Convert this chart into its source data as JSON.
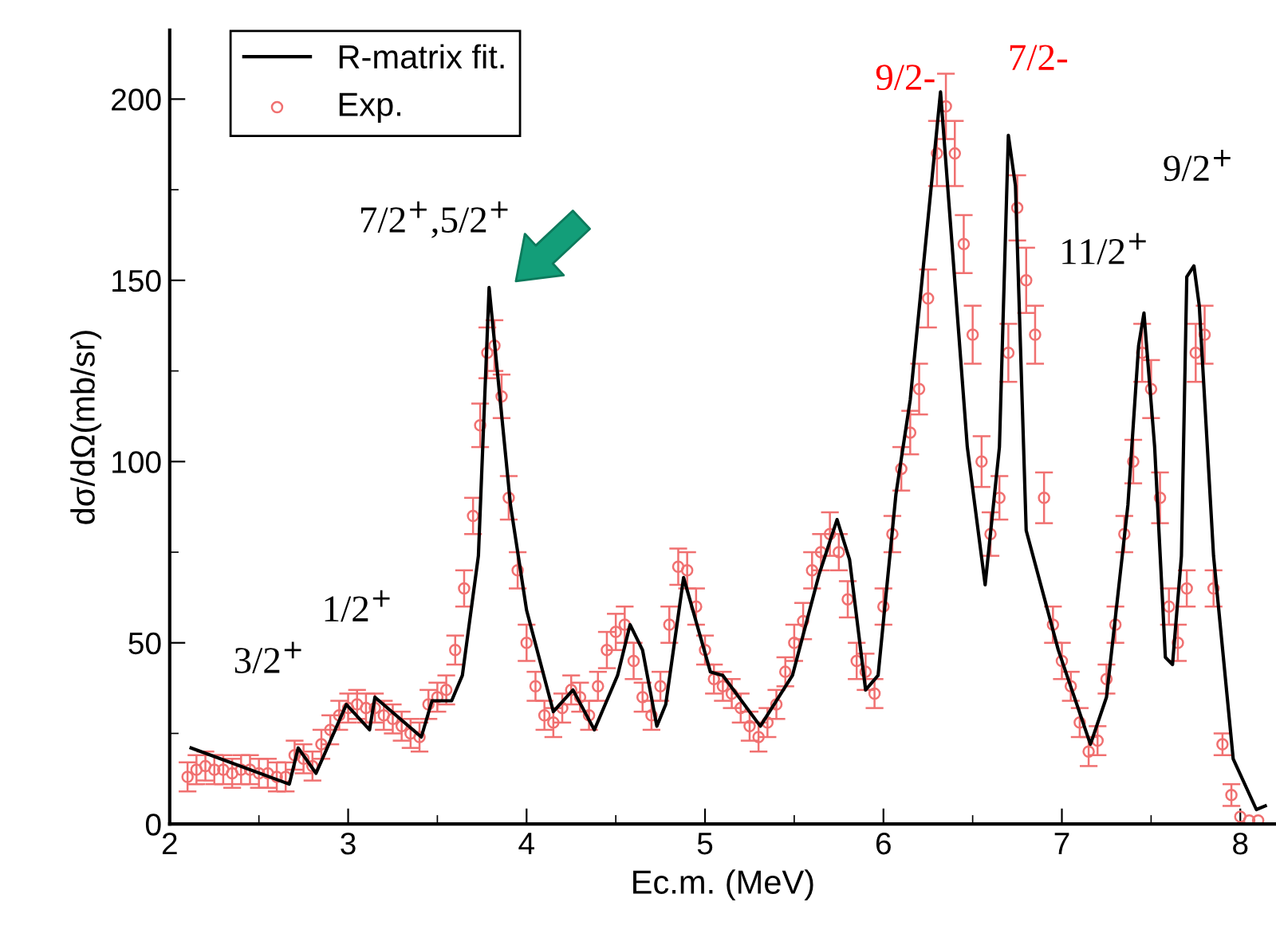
{
  "chart_data": {
    "type": "line",
    "xlabel": "Ec.m. (MeV)",
    "ylabel": "dσ/dΩ(mb/sr)",
    "xlim": [
      2,
      8.2
    ],
    "ylim": [
      0,
      219
    ],
    "xticks": [
      2,
      3,
      4,
      5,
      6,
      7,
      8
    ],
    "yticks": [
      0,
      50,
      100,
      150,
      200
    ],
    "legend": "top left",
    "grid": false,
    "series": [
      {
        "name": "R-matrix fit.",
        "color": "#000000",
        "marker": "none",
        "line_style": "solid",
        "x": [
          2.12,
          2.67,
          2.72,
          2.82,
          2.99,
          3.12,
          3.15,
          3.41,
          3.47,
          3.58,
          3.64,
          3.73,
          3.79,
          3.91,
          4.0,
          4.15,
          4.26,
          4.38,
          4.51,
          4.58,
          4.65,
          4.73,
          4.78,
          4.88,
          5.03,
          5.1,
          5.31,
          5.49,
          5.64,
          5.74,
          5.81,
          5.9,
          5.97,
          6.07,
          6.15,
          6.32,
          6.47,
          6.57,
          6.65,
          6.7,
          6.74,
          6.8,
          6.98,
          7.16,
          7.25,
          7.37,
          7.43,
          7.46,
          7.52,
          7.58,
          7.62,
          7.67,
          7.7,
          7.74,
          7.77,
          7.85,
          7.96,
          8.09,
          8.14
        ],
        "values": [
          21,
          11,
          21,
          14,
          33,
          26,
          35,
          24,
          34,
          34,
          41,
          74,
          148,
          88,
          59,
          31,
          37,
          26,
          41,
          55,
          48,
          27,
          33,
          68,
          42,
          41,
          27,
          41,
          69,
          84,
          73,
          37,
          41,
          91,
          117,
          202,
          104,
          66,
          104,
          190,
          176,
          81,
          48,
          22,
          35,
          88,
          132,
          141,
          104,
          46,
          44,
          74,
          151,
          154,
          143,
          74,
          18,
          4,
          5
        ]
      },
      {
        "name": "Exp.",
        "type": "scatter",
        "color": "#f07070",
        "marker": "circle",
        "x": [
          2.1,
          2.15,
          2.2,
          2.25,
          2.3,
          2.35,
          2.4,
          2.45,
          2.5,
          2.55,
          2.6,
          2.65,
          2.7,
          2.75,
          2.8,
          2.85,
          2.9,
          2.95,
          3.0,
          3.05,
          3.1,
          3.15,
          3.2,
          3.25,
          3.3,
          3.35,
          3.4,
          3.45,
          3.5,
          3.55,
          3.6,
          3.65,
          3.7,
          3.74,
          3.78,
          3.82,
          3.86,
          3.9,
          3.95,
          4.0,
          4.05,
          4.1,
          4.15,
          4.2,
          4.25,
          4.3,
          4.35,
          4.4,
          4.45,
          4.5,
          4.55,
          4.6,
          4.65,
          4.7,
          4.75,
          4.8,
          4.85,
          4.9,
          4.95,
          5.0,
          5.05,
          5.1,
          5.15,
          5.2,
          5.25,
          5.3,
          5.35,
          5.4,
          5.45,
          5.5,
          5.55,
          5.6,
          5.65,
          5.7,
          5.75,
          5.8,
          5.85,
          5.9,
          5.95,
          6.0,
          6.05,
          6.1,
          6.15,
          6.2,
          6.25,
          6.3,
          6.35,
          6.4,
          6.45,
          6.5,
          6.55,
          6.6,
          6.65,
          6.7,
          6.75,
          6.8,
          6.85,
          6.9,
          6.95,
          7.0,
          7.05,
          7.1,
          7.15,
          7.2,
          7.25,
          7.3,
          7.35,
          7.4,
          7.45,
          7.5,
          7.55,
          7.6,
          7.65,
          7.7,
          7.75,
          7.8,
          7.85,
          7.9,
          7.95,
          8.0,
          8.05,
          8.1
        ],
        "values": [
          13,
          15,
          16,
          15,
          15,
          14,
          15,
          15,
          14,
          14,
          13,
          13,
          19,
          18,
          16,
          22,
          26,
          30,
          32,
          33,
          32,
          32,
          30,
          29,
          27,
          25,
          24,
          33,
          35,
          37,
          48,
          65,
          85,
          110,
          130,
          132,
          118,
          90,
          70,
          50,
          38,
          30,
          28,
          32,
          37,
          35,
          30,
          38,
          48,
          53,
          55,
          45,
          35,
          30,
          38,
          55,
          71,
          70,
          60,
          48,
          40,
          38,
          36,
          32,
          27,
          24,
          28,
          33,
          42,
          50,
          56,
          70,
          75,
          80,
          75,
          62,
          45,
          42,
          36,
          60,
          80,
          98,
          108,
          120,
          145,
          185,
          198,
          185,
          160,
          135,
          100,
          80,
          90,
          130,
          170,
          150,
          135,
          90,
          55,
          45,
          38,
          28,
          20,
          23,
          40,
          55,
          80,
          100,
          130,
          120,
          90,
          60,
          50,
          65,
          130,
          135,
          65,
          22,
          8,
          2,
          1,
          1
        ],
        "errors": [
          4,
          4,
          4,
          4,
          4,
          4,
          4,
          4,
          4,
          4,
          4,
          4,
          4,
          4,
          4,
          4,
          4,
          4,
          4,
          4,
          4,
          4,
          4,
          4,
          4,
          4,
          4,
          4,
          4,
          4,
          4,
          5,
          5,
          6,
          7,
          7,
          6,
          6,
          5,
          5,
          4,
          4,
          4,
          4,
          4,
          4,
          4,
          4,
          5,
          5,
          5,
          5,
          4,
          4,
          4,
          5,
          5,
          5,
          5,
          4,
          4,
          4,
          4,
          4,
          4,
          4,
          4,
          4,
          4,
          5,
          5,
          5,
          5,
          6,
          5,
          5,
          5,
          5,
          4,
          5,
          5,
          6,
          6,
          7,
          8,
          9,
          9,
          9,
          8,
          8,
          7,
          6,
          6,
          8,
          9,
          9,
          8,
          7,
          5,
          5,
          4,
          4,
          4,
          4,
          4,
          5,
          5,
          6,
          8,
          8,
          7,
          5,
          5,
          5,
          8,
          8,
          5,
          3,
          3,
          null,
          null,
          null
        ]
      }
    ],
    "annotations": [
      "3/2$^{+}$",
      "1/2$^{+}$",
      "7/2$^{+}$,5/2$^{+}$",
      "9/2-",
      "7/2-",
      "11/2$^{+}$",
      "9/2$^{+}$"
    ]
  }
}
